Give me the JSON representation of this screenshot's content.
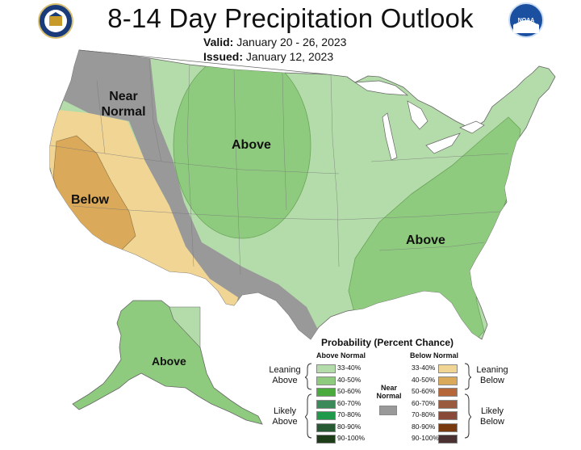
{
  "title": "8-14 Day Precipitation Outlook",
  "valid_label": "Valid:",
  "valid_value": "January 20 - 26, 2023",
  "issued_label": "Issued:",
  "issued_value": "January 12, 2023",
  "map_labels": {
    "near_normal": "Near Normal",
    "below_west": "Below",
    "above_north": "Above",
    "above_southeast": "Above",
    "above_alaska": "Above"
  },
  "legend": {
    "title": "Probability (Percent Chance)",
    "above_header": "Above Normal",
    "below_header": "Below Normal",
    "near_normal": "Near Normal",
    "leaning_above": "Leaning Above",
    "likely_above": "Likely Above",
    "leaning_below": "Leaning Below",
    "likely_below": "Likely Below",
    "above_levels": [
      {
        "label": "33-40%",
        "color": "#b4dcaa"
      },
      {
        "label": "40-50%",
        "color": "#8fcb7f"
      },
      {
        "label": "50-60%",
        "color": "#4aaa3e"
      },
      {
        "label": "60-70%",
        "color": "#3a8a5a"
      },
      {
        "label": "70-80%",
        "color": "#1e9a4a"
      },
      {
        "label": "80-90%",
        "color": "#275a32"
      },
      {
        "label": "90-100%",
        "color": "#1c3d18"
      }
    ],
    "below_levels": [
      {
        "label": "33-40%",
        "color": "#f0d595"
      },
      {
        "label": "40-50%",
        "color": "#dba95a"
      },
      {
        "label": "50-60%",
        "color": "#b5673a"
      },
      {
        "label": "60-70%",
        "color": "#9a5a3e"
      },
      {
        "label": "70-80%",
        "color": "#8a4a3a"
      },
      {
        "label": "80-90%",
        "color": "#7a3a10"
      },
      {
        "label": "90-100%",
        "color": "#4a3030"
      }
    ],
    "near_color": "#999999"
  }
}
